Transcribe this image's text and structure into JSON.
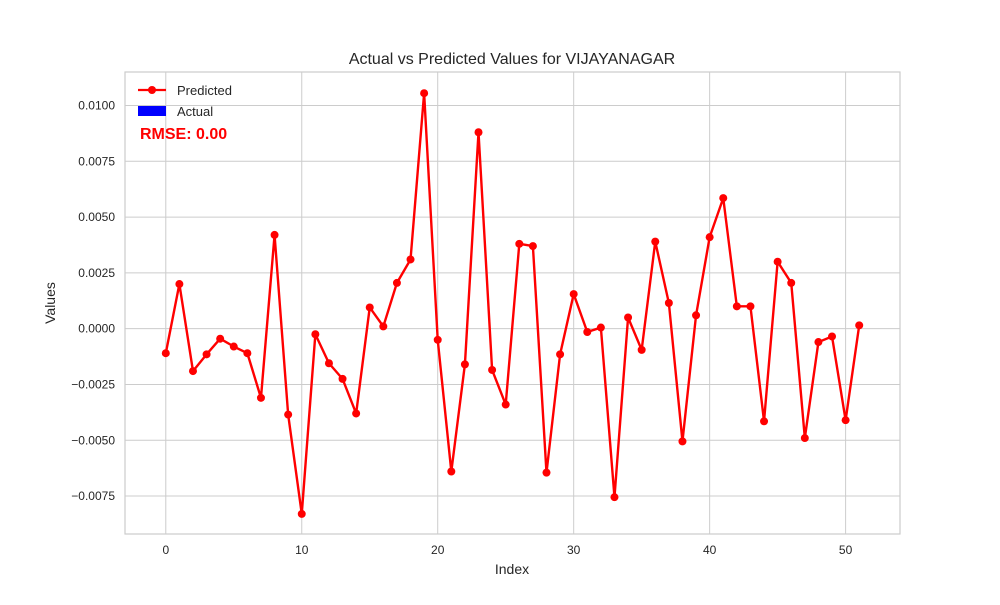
{
  "chart_data": {
    "type": "line",
    "title": "Actual vs Predicted Values for VIJAYANAGAR",
    "xlabel": "Index",
    "ylabel": "Values",
    "xlim": [
      -3,
      54
    ],
    "ylim": [
      -0.0092,
      0.0115
    ],
    "xticks": [
      0,
      10,
      20,
      30,
      40,
      50
    ],
    "xtick_labels": [
      "0",
      "10",
      "20",
      "30",
      "40",
      "50"
    ],
    "yticks": [
      -0.0075,
      -0.005,
      -0.0025,
      0.0,
      0.0025,
      0.005,
      0.0075,
      0.01
    ],
    "ytick_labels": [
      "−0.0075",
      "−0.0050",
      "−0.0025",
      "0.0000",
      "0.0025",
      "0.0050",
      "0.0075",
      "0.0100"
    ],
    "grid": true,
    "legend_position": "top-left",
    "legend": [
      {
        "label": "Predicted",
        "color": "#ff0000",
        "marker": "line-circle"
      },
      {
        "label": "Actual",
        "color": "#0000ff",
        "marker": "patch"
      }
    ],
    "annotation": {
      "text": "RMSE: 0.00",
      "color": "#ff0000"
    },
    "series": [
      {
        "name": "Predicted",
        "color": "#ff0000",
        "x": [
          0,
          1,
          2,
          3,
          4,
          5,
          6,
          7,
          8,
          9,
          10,
          11,
          12,
          13,
          14,
          15,
          16,
          17,
          18,
          19,
          20,
          21,
          22,
          23,
          24,
          25,
          26,
          27,
          28,
          29,
          30,
          31,
          32,
          33,
          34,
          35,
          36,
          37,
          38,
          39,
          40,
          41,
          42,
          43,
          44,
          45,
          46,
          47,
          48,
          49,
          50,
          51
        ],
        "values": [
          -0.0011,
          0.002,
          -0.0019,
          -0.00115,
          -0.00045,
          -0.0008,
          -0.0011,
          -0.0031,
          0.0042,
          -0.00385,
          -0.0083,
          -0.00025,
          -0.00155,
          -0.00225,
          -0.0038,
          0.00095,
          0.0001,
          0.00205,
          0.0031,
          0.01055,
          -0.0005,
          -0.0064,
          -0.0016,
          0.0088,
          -0.00185,
          -0.0034,
          0.0038,
          0.0037,
          -0.00645,
          -0.00115,
          0.00155,
          -0.00015,
          5e-05,
          -0.00755,
          0.0005,
          -0.00095,
          0.0039,
          0.00115,
          -0.00505,
          0.0006,
          0.0041,
          0.00585,
          0.001,
          0.001,
          -0.00415,
          0.003,
          0.00205,
          -0.0049,
          -0.0006,
          -0.00035,
          -0.0041,
          0.00015
        ]
      },
      {
        "name": "Actual",
        "color": "#0000ff",
        "values": []
      }
    ]
  }
}
